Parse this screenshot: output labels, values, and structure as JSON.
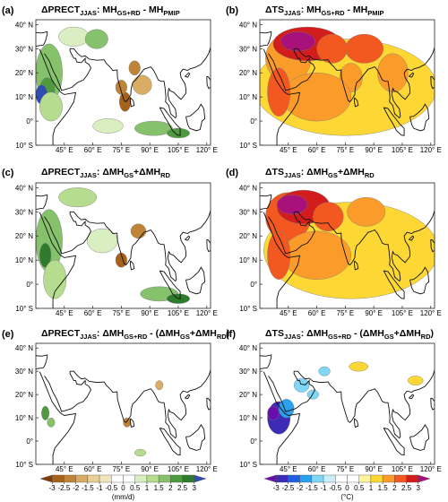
{
  "map": {
    "xlim": [
      30,
      122
    ],
    "ylim": [
      -10,
      42
    ],
    "xticks": [
      {
        "value": 45,
        "label": "45° E"
      },
      {
        "value": 60,
        "label": "60° E"
      },
      {
        "value": 75,
        "label": "75° E"
      },
      {
        "value": 90,
        "label": "90° E"
      },
      {
        "value": 105,
        "label": "105° E"
      },
      {
        "value": 120,
        "label": "120° E"
      }
    ],
    "yticks": [
      {
        "value": -10,
        "label": "10° S"
      },
      {
        "value": 0,
        "label": "0°"
      },
      {
        "value": 10,
        "label": "10° N"
      },
      {
        "value": 20,
        "label": "20° N"
      },
      {
        "value": 30,
        "label": "30° N"
      },
      {
        "value": 40,
        "label": "40° N"
      }
    ]
  },
  "panels": [
    {
      "label": "(a)",
      "field": "precip",
      "title": [
        {
          "text": "ΔPRECT"
        },
        {
          "text": "JJAS",
          "sub": true
        },
        {
          "text": ": MH"
        },
        {
          "text": "GS+RD",
          "sub": true
        },
        {
          "text": " - MH"
        },
        {
          "text": "PMIP",
          "sub": true
        }
      ]
    },
    {
      "label": "(b)",
      "field": "temp",
      "title": [
        {
          "text": "ΔTS"
        },
        {
          "text": "JJAS",
          "sub": true
        },
        {
          "text": ": MH"
        },
        {
          "text": "GS+RD",
          "sub": true
        },
        {
          "text": " - MH"
        },
        {
          "text": "PMIP",
          "sub": true
        }
      ]
    },
    {
      "label": "(c)",
      "field": "precip",
      "title": [
        {
          "text": "ΔPRECT"
        },
        {
          "text": "JJAS",
          "sub": true
        },
        {
          "text": ": ΔMH"
        },
        {
          "text": "GS",
          "sub": true
        },
        {
          "text": "+ΔMH"
        },
        {
          "text": "RD",
          "sub": true
        }
      ]
    },
    {
      "label": "(d)",
      "field": "temp",
      "title": [
        {
          "text": "ΔTS"
        },
        {
          "text": "JJAS",
          "sub": true
        },
        {
          "text": ": ΔMH"
        },
        {
          "text": "GS",
          "sub": true
        },
        {
          "text": "+ΔMH"
        },
        {
          "text": "RD",
          "sub": true
        }
      ]
    },
    {
      "label": "(e)",
      "field": "precip",
      "title": [
        {
          "text": "ΔPRECT"
        },
        {
          "text": "JJAS",
          "sub": true
        },
        {
          "text": ": ΔMH"
        },
        {
          "text": "GS+RD",
          "sub": true
        },
        {
          "text": " - (ΔMH"
        },
        {
          "text": "GS",
          "sub": true
        },
        {
          "text": "+ΔMH"
        },
        {
          "text": "RD",
          "sub": true
        },
        {
          "text": ")"
        }
      ]
    },
    {
      "label": "(f)",
      "field": "temp",
      "title": [
        {
          "text": "ΔTS"
        },
        {
          "text": "JJAS",
          "sub": true
        },
        {
          "text": ": ΔMH"
        },
        {
          "text": "GS+RD",
          "sub": true
        },
        {
          "text": " - (ΔMH"
        },
        {
          "text": "GS",
          "sub": true
        },
        {
          "text": "+ΔMH"
        },
        {
          "text": "RD",
          "sub": true
        },
        {
          "text": ")"
        }
      ]
    }
  ],
  "colorbars": {
    "precip": {
      "units": "(mm/d)",
      "ticks": [
        -3,
        -2.5,
        -2,
        -1.5,
        -1,
        -0.5,
        0,
        0.5,
        1,
        1.5,
        2,
        2.5,
        3
      ],
      "colors": [
        "#7f3b08",
        "#a6611a",
        "#c08437",
        "#d8ad63",
        "#e8cf95",
        "#f3e4c0",
        "#ffffff",
        "#ffffff",
        "#d9efc2",
        "#b5dc8f",
        "#86c26b",
        "#4f9a3f",
        "#2e7b2e",
        "#2f4fb0"
      ]
    },
    "temp": {
      "units": "(°C)",
      "ticks": [
        -3,
        -2.5,
        -2,
        -1.5,
        -1,
        -0.5,
        0,
        0.5,
        1,
        1.5,
        2,
        2.5,
        3
      ],
      "colors": [
        "#6a0dad",
        "#3b2bb5",
        "#1d5fe0",
        "#2aa0f0",
        "#7fd6f7",
        "#c8eefb",
        "#ffffff",
        "#ffffff",
        "#fff59a",
        "#fdd835",
        "#fb9b2a",
        "#f2581f",
        "#d31d1d",
        "#a8107a"
      ]
    }
  }
}
